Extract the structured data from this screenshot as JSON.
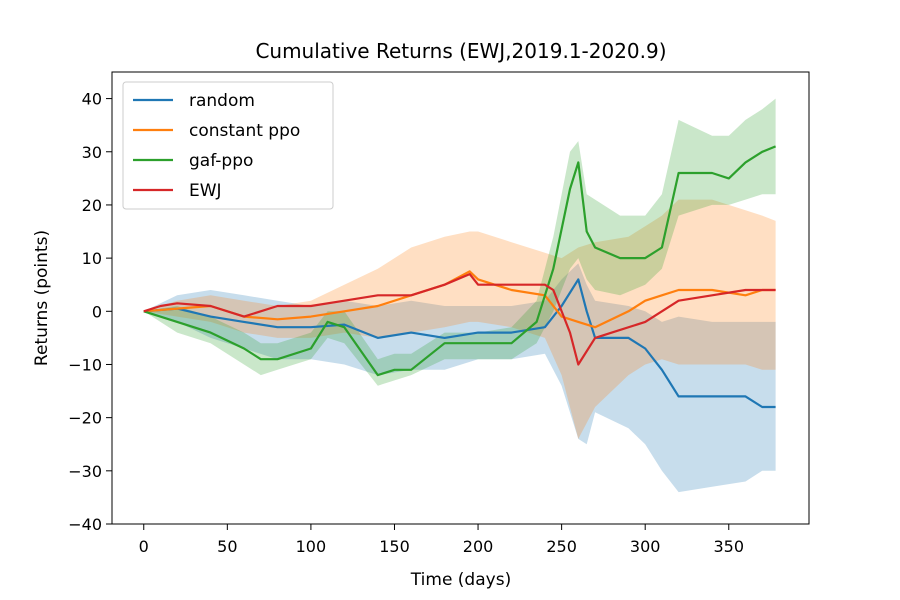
{
  "chart_data": {
    "type": "line",
    "title": "Cumulative Returns (EWJ,2019.1-2020.9)",
    "xlabel": "Time (days)",
    "ylabel": "Returns (points)",
    "xlim": [
      -19,
      398
    ],
    "ylim": [
      -40,
      45
    ],
    "xticks": [
      0,
      50,
      100,
      150,
      200,
      250,
      300,
      350
    ],
    "yticks": [
      -40,
      -30,
      -20,
      -10,
      0,
      10,
      20,
      30,
      40
    ],
    "ytick_labels": [
      "−40",
      "−30",
      "−20",
      "−10",
      "0",
      "10",
      "20",
      "30",
      "40"
    ],
    "legend_position": "top-left",
    "series": [
      {
        "name": "random",
        "color": "#1f77b4",
        "x": [
          0,
          20,
          40,
          60,
          80,
          100,
          120,
          140,
          160,
          180,
          200,
          220,
          240,
          250,
          260,
          265,
          270,
          290,
          300,
          310,
          320,
          340,
          360,
          370,
          378
        ],
        "y": [
          0,
          0.5,
          -1,
          -2,
          -3,
          -3,
          -2.5,
          -5,
          -4,
          -5,
          -4,
          -4,
          -3,
          1,
          6,
          0,
          -5,
          -5,
          -7,
          -11,
          -16,
          -16,
          -16,
          -18,
          -18
        ],
        "lower": [
          0,
          -2,
          -5,
          -7,
          -9,
          -9,
          -10,
          -12,
          -11,
          -11,
          -9,
          -9,
          -8,
          -14,
          -24,
          -25,
          -19,
          -22,
          -25,
          -30,
          -34,
          -33,
          -32,
          -30,
          -30
        ],
        "upper": [
          0,
          3,
          4,
          3,
          2,
          1,
          2,
          1,
          2,
          1,
          1,
          1,
          2,
          6,
          9,
          5,
          2,
          1,
          0,
          -2,
          -1,
          -2,
          -2,
          -2,
          -2
        ]
      },
      {
        "name": "constant ppo",
        "color": "#ff7f0e",
        "x": [
          0,
          20,
          40,
          60,
          80,
          100,
          120,
          140,
          160,
          180,
          195,
          200,
          220,
          240,
          250,
          260,
          270,
          290,
          300,
          310,
          320,
          340,
          360,
          370,
          378
        ],
        "y": [
          0,
          0.5,
          1,
          -1,
          -1.5,
          -1,
          0,
          1,
          3,
          5,
          7.5,
          6,
          4,
          3,
          -1,
          -2,
          -3,
          0,
          2,
          3,
          4,
          4,
          3,
          4,
          4
        ],
        "lower": [
          0,
          -1,
          -2,
          -4,
          -5,
          -5,
          -4,
          -5,
          -4,
          -3,
          -2,
          -2,
          -3,
          -5,
          -12,
          -24,
          -18,
          -12,
          -10,
          -9,
          -10,
          -10,
          -10,
          -11,
          -11
        ],
        "upper": [
          0,
          2,
          3,
          2,
          1,
          2,
          5,
          8,
          12,
          14,
          15,
          15,
          13,
          11,
          10,
          12,
          13,
          14,
          16,
          18,
          21,
          21,
          19,
          18,
          17
        ]
      },
      {
        "name": "gaf-ppo",
        "color": "#2ca02c",
        "x": [
          0,
          20,
          40,
          60,
          70,
          80,
          100,
          110,
          120,
          140,
          150,
          160,
          180,
          200,
          220,
          235,
          245,
          255,
          260,
          265,
          270,
          285,
          300,
          310,
          320,
          340,
          350,
          360,
          370,
          378
        ],
        "y": [
          0,
          -2,
          -4,
          -7,
          -9,
          -9,
          -7,
          -2,
          -3,
          -12,
          -11,
          -11,
          -6,
          -6,
          -6,
          -2,
          8,
          23,
          28,
          15,
          12,
          10,
          10,
          12,
          26,
          26,
          25,
          28,
          30,
          31
        ],
        "lower": [
          0,
          -4,
          -6,
          -10,
          -12,
          -11,
          -9,
          -5,
          -6,
          -14,
          -13,
          -12,
          -9,
          -9,
          -9,
          -6,
          0,
          8,
          10,
          6,
          4,
          3,
          5,
          8,
          18,
          20,
          20,
          21,
          22,
          22
        ],
        "upper": [
          0,
          1,
          -1,
          -4,
          -6,
          -6,
          -4,
          0,
          0,
          -9,
          -8,
          -8,
          -4,
          -4,
          -3,
          2,
          14,
          30,
          32,
          22,
          21,
          18,
          18,
          22,
          36,
          33,
          33,
          36,
          38,
          40
        ]
      },
      {
        "name": "EWJ",
        "color": "#d62728",
        "x": [
          0,
          10,
          20,
          40,
          60,
          80,
          100,
          120,
          140,
          160,
          180,
          195,
          200,
          220,
          240,
          245,
          255,
          260,
          270,
          280,
          300,
          320,
          340,
          360,
          378
        ],
        "y": [
          0,
          1,
          1.5,
          1,
          -1,
          1,
          1,
          2,
          3,
          3,
          5,
          7,
          5,
          5,
          5,
          4,
          -4,
          -10,
          -5,
          -4,
          -2,
          2,
          3,
          4,
          4
        ],
        "lower": [],
        "upper": []
      }
    ]
  }
}
